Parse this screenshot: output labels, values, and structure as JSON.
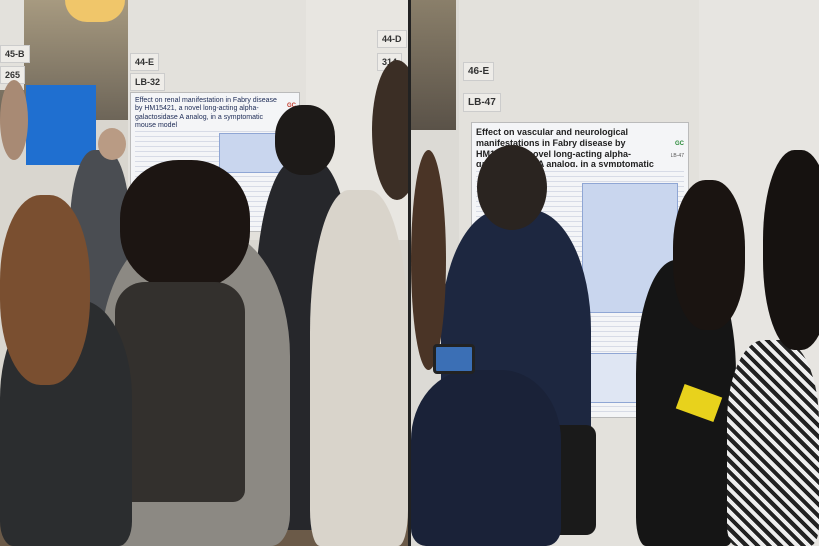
{
  "left_photo": {
    "board_labels": [
      "45-B",
      "265",
      "44-E",
      "LB-32",
      "44-D",
      "314"
    ],
    "poster_title": "Effect on renal manifestation in Fabry disease by HM15421, a novel long-acting alpha-galactosidase A analog, in a symptomatic mouse model",
    "logo_text": "GC"
  },
  "right_photo": {
    "board_labels": [
      "46-E",
      "LB-47"
    ],
    "poster_title": "Effect on vascular and neurological manifestations in Fabry disease by HM15421, a novel long-acting alpha-galactosidase A analog, in a symptomatic mouse model",
    "poster_code": "LB-47",
    "logo_text": "GC"
  },
  "colors": {
    "screen_blue": "#1f6fd0",
    "poster_header": "#1c2a55"
  }
}
